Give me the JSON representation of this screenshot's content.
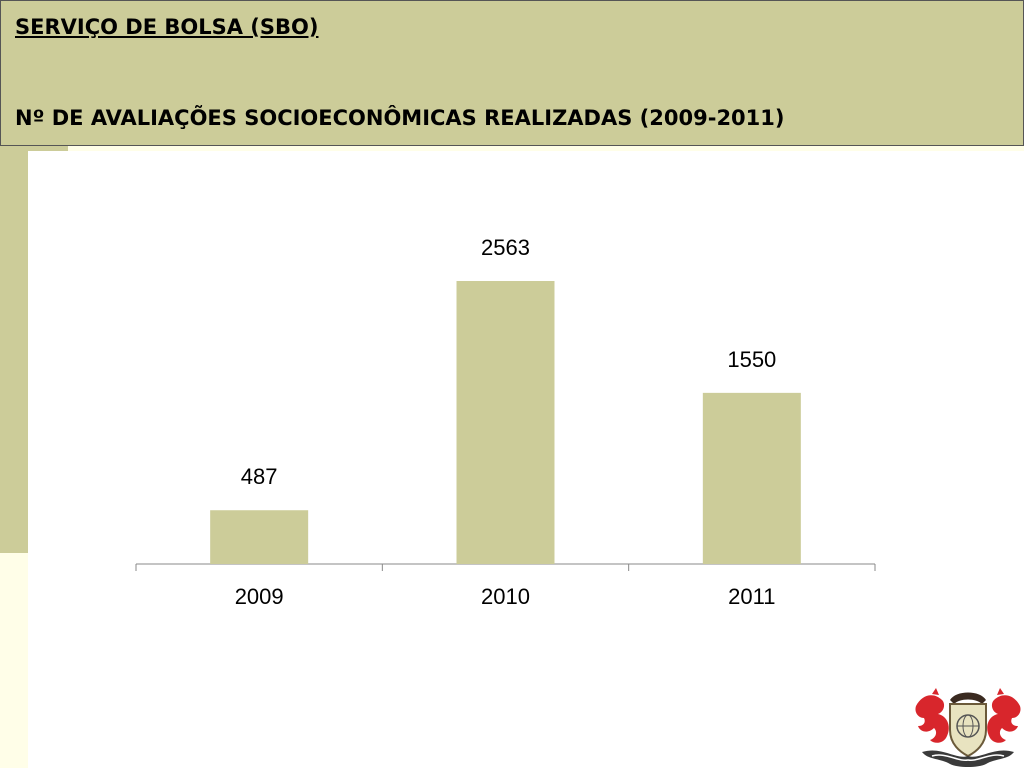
{
  "header": {
    "title": "SERVIÇO DE BOLSA (SBO)",
    "subtitle": "Nº DE AVALIAÇÕES SOCIOECONÔMICAS REALIZADAS (2009-2011)"
  },
  "colors": {
    "bar": "#cccc99",
    "header_bg": "#cccc99",
    "page_bg": "#ffffff",
    "side_bg": "#fffee8",
    "logo_red": "#d8262c"
  },
  "logo": {
    "icon": "coat-of-arms-icon"
  },
  "chart_data": {
    "type": "bar",
    "categories": [
      "2009",
      "2010",
      "2011"
    ],
    "values": [
      487,
      2563,
      1550
    ],
    "data_labels": [
      "487",
      "2563",
      "1550"
    ],
    "ylim": [
      0,
      2900
    ],
    "grid": false,
    "legend": false
  }
}
